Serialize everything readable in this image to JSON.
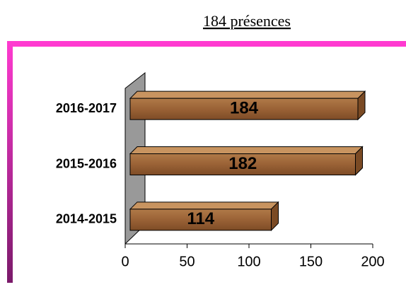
{
  "chart_data": {
    "type": "bar",
    "orientation": "horizontal",
    "title": "184 présences",
    "categories": [
      "2014-2015",
      "2015-2016",
      "2016-2017"
    ],
    "values": [
      114,
      182,
      184
    ],
    "color": "#9a6a3a",
    "xlim": [
      0,
      200
    ],
    "xticks": [
      0,
      50,
      100,
      150,
      200
    ]
  }
}
